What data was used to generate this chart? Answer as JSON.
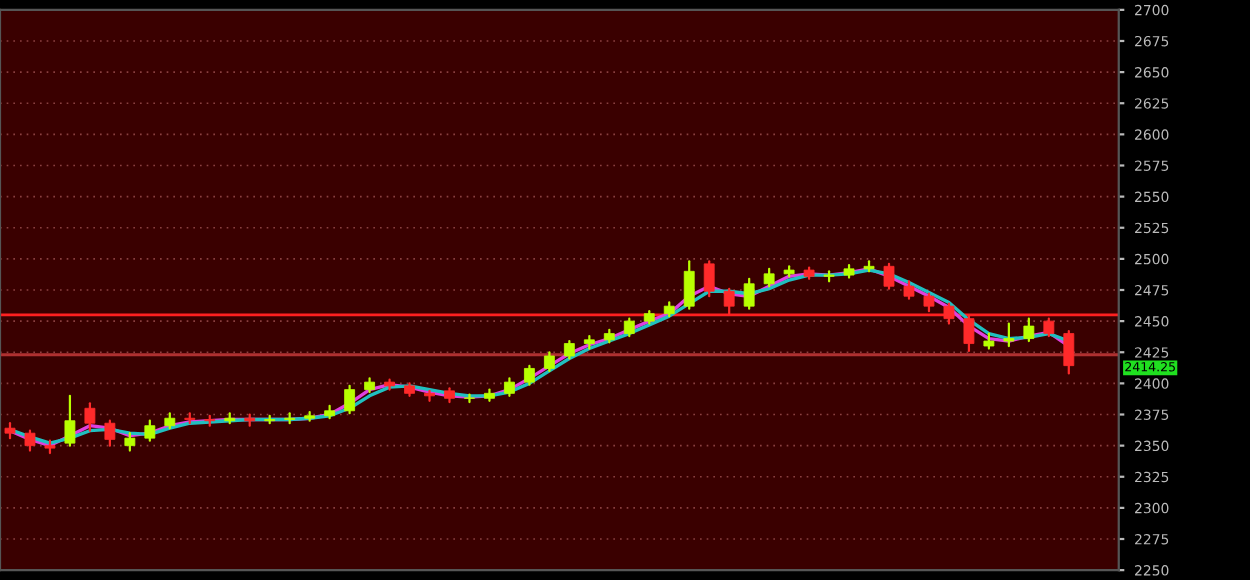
{
  "chart_data": {
    "type": "candlestick",
    "categories": [
      null,
      null,
      null,
      null,
      null,
      null,
      null,
      null,
      null,
      null,
      null,
      null,
      null,
      null,
      null,
      null,
      null,
      null,
      null,
      null,
      null,
      null,
      null,
      null,
      null,
      null,
      null,
      null,
      null,
      null,
      null,
      null,
      null,
      null,
      null,
      null,
      null,
      null,
      null,
      null,
      null,
      null,
      null,
      null,
      null,
      null,
      null,
      null,
      null,
      null,
      null,
      null,
      null,
      null
    ],
    "ohlc": [
      [
        2364,
        2368,
        2356,
        2360
      ],
      [
        2360,
        2362,
        2346,
        2350
      ],
      [
        2350,
        2354,
        2344,
        2348
      ],
      [
        2352,
        2390,
        2350,
        2370
      ],
      [
        2380,
        2384,
        2362,
        2368
      ],
      [
        2368,
        2370,
        2350,
        2355
      ],
      [
        2350,
        2360,
        2346,
        2356
      ],
      [
        2356,
        2370,
        2354,
        2366
      ],
      [
        2366,
        2376,
        2364,
        2372
      ],
      [
        2372,
        2376,
        2368,
        2371
      ],
      [
        2371,
        2374,
        2366,
        2370
      ],
      [
        2370,
        2376,
        2368,
        2372
      ],
      [
        2372,
        2375,
        2366,
        2370
      ],
      [
        2370,
        2374,
        2368,
        2371
      ],
      [
        2371,
        2376,
        2368,
        2372
      ],
      [
        2372,
        2377,
        2370,
        2374
      ],
      [
        2374,
        2382,
        2372,
        2378
      ],
      [
        2378,
        2398,
        2376,
        2395
      ],
      [
        2395,
        2404,
        2393,
        2401
      ],
      [
        2401,
        2403,
        2395,
        2398
      ],
      [
        2398,
        2400,
        2390,
        2392
      ],
      [
        2392,
        2394,
        2386,
        2390
      ],
      [
        2394,
        2396,
        2385,
        2388
      ],
      [
        2388,
        2391,
        2385,
        2388
      ],
      [
        2388,
        2395,
        2386,
        2392
      ],
      [
        2392,
        2404,
        2390,
        2401
      ],
      [
        2401,
        2414,
        2399,
        2412
      ],
      [
        2412,
        2425,
        2410,
        2422
      ],
      [
        2422,
        2434,
        2420,
        2432
      ],
      [
        2432,
        2438,
        2428,
        2435
      ],
      [
        2435,
        2443,
        2433,
        2440
      ],
      [
        2440,
        2452,
        2438,
        2450
      ],
      [
        2450,
        2458,
        2448,
        2456
      ],
      [
        2456,
        2465,
        2454,
        2462
      ],
      [
        2462,
        2498,
        2460,
        2490
      ],
      [
        2496,
        2498,
        2470,
        2474
      ],
      [
        2474,
        2476,
        2456,
        2462
      ],
      [
        2462,
        2484,
        2460,
        2480
      ],
      [
        2480,
        2492,
        2478,
        2488
      ],
      [
        2488,
        2494,
        2486,
        2491
      ],
      [
        2491,
        2493,
        2484,
        2486
      ],
      [
        2486,
        2490,
        2482,
        2487
      ],
      [
        2487,
        2495,
        2485,
        2492
      ],
      [
        2492,
        2498,
        2490,
        2494
      ],
      [
        2494,
        2496,
        2476,
        2478
      ],
      [
        2478,
        2482,
        2468,
        2470
      ],
      [
        2470,
        2472,
        2458,
        2462
      ],
      [
        2462,
        2464,
        2448,
        2452
      ],
      [
        2452,
        2454,
        2426,
        2432
      ],
      [
        2430,
        2440,
        2428,
        2434
      ],
      [
        2434,
        2448,
        2430,
        2436
      ],
      [
        2436,
        2452,
        2434,
        2446
      ],
      [
        2450,
        2452,
        2438,
        2440
      ],
      [
        2440,
        2442,
        2408,
        2414.25
      ]
    ],
    "series": [
      {
        "type": "line",
        "color": "#e040e0",
        "values": [
          2362,
          2355,
          2350,
          2358,
          2366,
          2364,
          2358,
          2360,
          2366,
          2369,
          2370,
          2371,
          2371,
          2371,
          2371,
          2372,
          2375,
          2384,
          2395,
          2399,
          2397,
          2393,
          2390,
          2389,
          2390,
          2395,
          2404,
          2414,
          2424,
          2431,
          2436,
          2443,
          2450,
          2456,
          2470,
          2478,
          2472,
          2470,
          2478,
          2486,
          2488,
          2487,
          2489,
          2492,
          2486,
          2478,
          2470,
          2461,
          2446,
          2436,
          2434,
          2438,
          2441,
          2430
        ]
      },
      {
        "type": "line",
        "color": "#20c0c0",
        "values": [
          2363,
          2357,
          2352,
          2356,
          2362,
          2363,
          2360,
          2359,
          2364,
          2368,
          2369,
          2370,
          2371,
          2371,
          2371,
          2372,
          2374,
          2380,
          2390,
          2397,
          2398,
          2395,
          2392,
          2390,
          2390,
          2393,
          2400,
          2410,
          2420,
          2428,
          2434,
          2440,
          2447,
          2454,
          2464,
          2474,
          2474,
          2472,
          2476,
          2483,
          2487,
          2487,
          2488,
          2491,
          2488,
          2481,
          2473,
          2465,
          2451,
          2440,
          2436,
          2437,
          2440,
          2434
        ]
      }
    ],
    "ylim": [
      2250,
      2700
    ],
    "yticks": [
      2250,
      2275,
      2300,
      2325,
      2350,
      2375,
      2400,
      2425,
      2450,
      2475,
      2500,
      2525,
      2550,
      2575,
      2600,
      2625,
      2650,
      2675,
      2700
    ],
    "grid": "y",
    "tick_labels": "y",
    "ref_lines": [
      {
        "axis": "y",
        "value": 2455,
        "color": "#ff2020"
      },
      {
        "axis": "y",
        "value": 2423,
        "color": "#b03030"
      }
    ],
    "annotations": [
      "2414.25"
    ]
  }
}
